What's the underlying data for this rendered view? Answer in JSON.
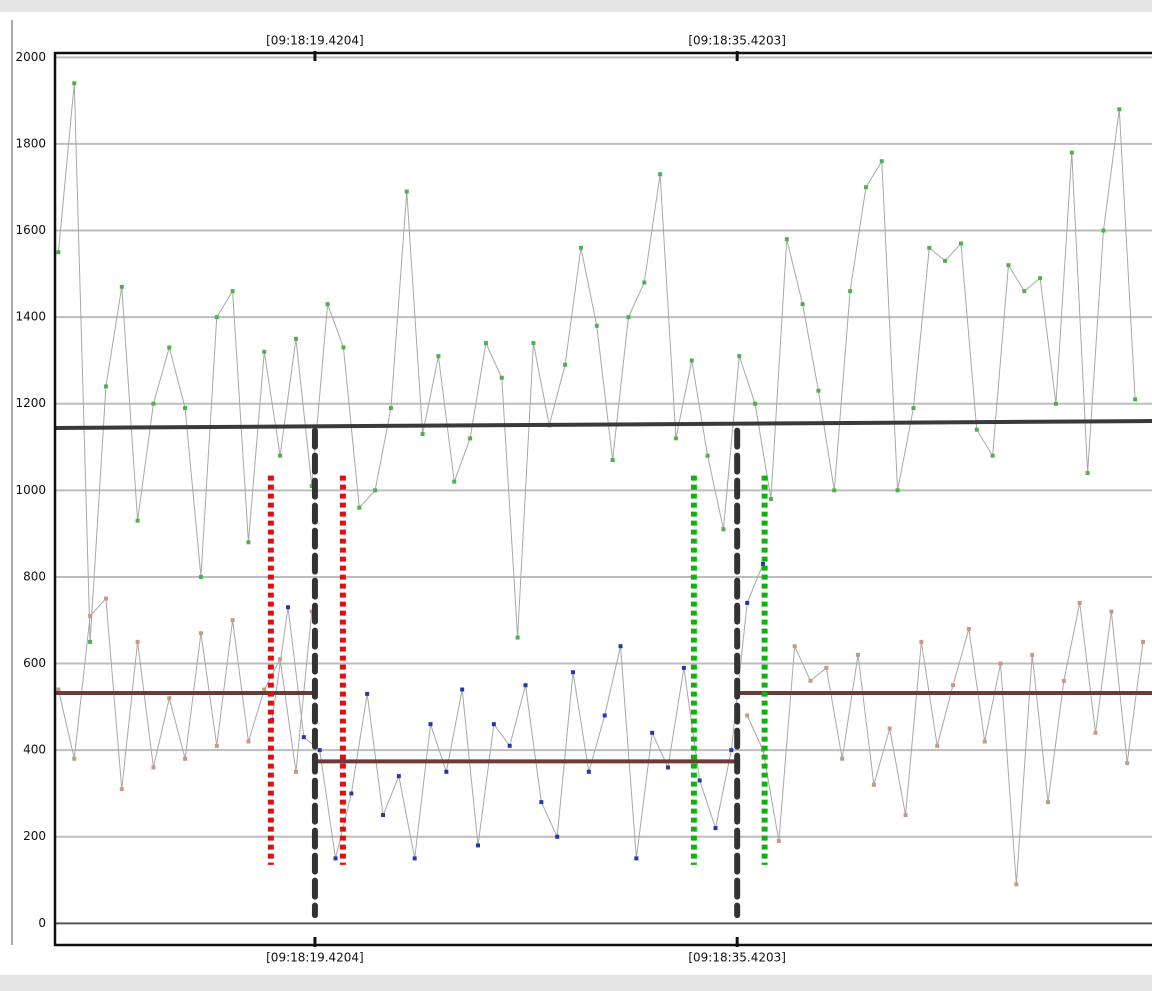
{
  "chart_data": {
    "type": "line",
    "xlim": [
      9.57,
      51.14
    ],
    "ylim": [
      -50,
      2010
    ],
    "xticks": [
      {
        "value": 19.4204,
        "label": "[09:18:19.4204]"
      },
      {
        "value": 35.4203,
        "label": "[09:18:35.4203]"
      }
    ],
    "yticks": [
      0,
      200,
      400,
      600,
      800,
      1000,
      1200,
      1400,
      1600,
      1800,
      2000
    ],
    "grid": true,
    "series": [
      {
        "color": "#4db24d",
        "line_color": "#a8a8a8",
        "x": [
          9.7,
          10.3,
          10.9,
          11.5,
          12.1,
          12.7,
          13.3,
          13.9,
          14.5,
          15.1,
          15.7,
          16.3,
          16.9,
          17.5,
          18.1,
          18.7,
          19.3,
          19.9,
          20.5,
          21.1,
          21.7,
          22.3,
          22.9,
          23.5,
          24.1,
          24.7,
          25.3,
          25.9,
          26.5,
          27.1,
          27.7,
          28.3,
          28.9,
          29.5,
          30.1,
          30.7,
          31.3,
          31.9,
          32.5,
          33.1,
          33.7,
          34.3,
          34.9,
          35.5,
          36.1,
          36.7,
          37.3,
          37.9,
          38.5,
          39.1,
          39.7,
          40.3,
          40.9,
          41.5,
          42.1,
          42.7,
          43.3,
          43.9,
          44.5,
          45.1,
          45.7,
          46.3,
          46.9,
          47.5,
          48.1,
          48.7,
          49.3,
          49.9,
          50.5
        ],
        "values": [
          1550,
          1940,
          650,
          1240,
          1470,
          930,
          1200,
          1330,
          1190,
          800,
          1400,
          1460,
          880,
          1320,
          1080,
          1350,
          1010,
          1430,
          1330,
          960,
          1000,
          1190,
          1690,
          1130,
          1310,
          1020,
          1120,
          1340,
          1260,
          660,
          1340,
          1150,
          1290,
          1560,
          1380,
          1070,
          1400,
          1480,
          1730,
          1120,
          1300,
          1080,
          910,
          1310,
          1200,
          980,
          1580,
          1430,
          1230,
          1000,
          1460,
          1700,
          1760,
          1000,
          1190,
          1560,
          1530,
          1570,
          1140,
          1080,
          1520,
          1460,
          1490,
          1200,
          1780,
          1040,
          1600,
          1880,
          1210
        ]
      },
      {
        "color": "#c89a84",
        "line_color": "#a8a8a8",
        "x": [
          9.7,
          10.3,
          10.9,
          11.5,
          12.1,
          12.7,
          13.3,
          13.9,
          14.5,
          15.1,
          15.7,
          16.3,
          16.9,
          17.5,
          18.1,
          18.7,
          19.3,
          27.5,
          35.8,
          36.4,
          37.0,
          37.6,
          38.2,
          38.8,
          39.4,
          40.0,
          40.6,
          41.2,
          41.8,
          42.4,
          43.0,
          43.6,
          44.2,
          44.8,
          45.4,
          46.0,
          46.6,
          47.2,
          47.8,
          48.4,
          49.0,
          49.6,
          50.2,
          50.8
        ],
        "values": [
          540,
          380,
          710,
          750,
          310,
          650,
          360,
          520,
          380,
          670,
          410,
          700,
          420,
          540,
          610,
          350,
          720,
          null,
          480,
          400,
          190,
          640,
          560,
          590,
          380,
          620,
          320,
          450,
          250,
          650,
          410,
          550,
          680,
          420,
          600,
          90,
          620,
          280,
          560,
          740,
          440,
          720,
          370,
          650
        ]
      },
      {
        "color": "#2a36a8",
        "line_color": "#a8a8a8",
        "x": [
          17.8,
          18.4,
          19.0,
          19.6,
          20.2,
          20.8,
          21.4,
          22.0,
          22.6,
          23.2,
          23.8,
          24.4,
          25.0,
          25.6,
          26.2,
          26.8,
          27.4,
          28.0,
          28.6,
          29.2,
          29.8,
          30.4,
          31.0,
          31.6,
          32.2,
          32.8,
          33.4,
          34.0,
          34.6,
          35.2,
          35.8,
          36.4
        ],
        "values": [
          470,
          730,
          430,
          400,
          150,
          300,
          530,
          250,
          340,
          150,
          460,
          350,
          540,
          180,
          460,
          410,
          550,
          280,
          200,
          580,
          350,
          480,
          640,
          150,
          440,
          360,
          590,
          330,
          220,
          400,
          740,
          830
        ]
      }
    ],
    "trend": {
      "color": "#3a3a3a",
      "x": [
        9.57,
        51.14
      ],
      "values": [
        1144,
        1160
      ]
    },
    "levels": [
      {
        "color": "#6b3a3a",
        "x": [
          9.57,
          19.4204
        ],
        "values": [
          532,
          532
        ]
      },
      {
        "color": "#6b3a3a",
        "x": [
          19.4204,
          35.4203
        ],
        "values": [
          374,
          374
        ]
      },
      {
        "color": "#6b3a3a",
        "x": [
          35.4203,
          51.14
        ],
        "values": [
          532,
          532
        ]
      }
    ],
    "markers": [
      {
        "x": 17.75,
        "from": 135,
        "to": 1034,
        "color": "#e01010",
        "style": "dotted"
      },
      {
        "x": 19.4204,
        "from": 19,
        "to": 1138,
        "color": "#333333",
        "style": "dashed"
      },
      {
        "x": 20.48,
        "from": 135,
        "to": 1034,
        "color": "#e01010",
        "style": "dotted"
      },
      {
        "x": 33.78,
        "from": 135,
        "to": 1034,
        "color": "#10b010",
        "style": "dotted"
      },
      {
        "x": 35.4203,
        "from": 19,
        "to": 1138,
        "color": "#333333",
        "style": "dashed"
      },
      {
        "x": 36.46,
        "from": 135,
        "to": 1034,
        "color": "#10b010",
        "style": "dotted"
      }
    ]
  }
}
